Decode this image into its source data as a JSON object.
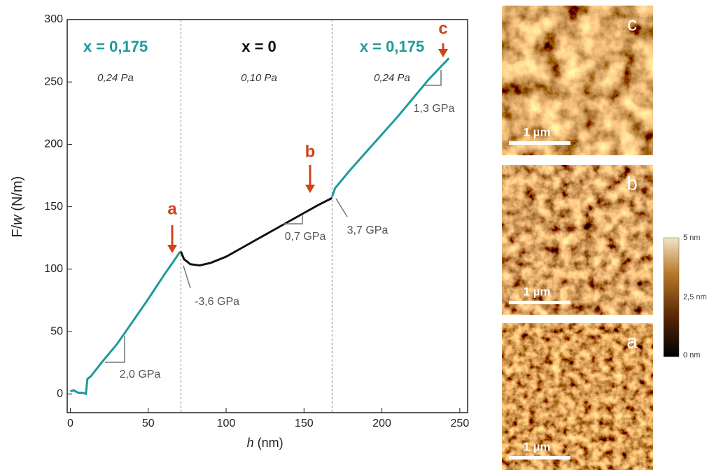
{
  "chart_data": {
    "type": "line",
    "xlabel": {
      "var": "h",
      "unit": "(nm)"
    },
    "ylabel": {
      "var": "F/",
      "var2": "w",
      "unit": "(N/m)"
    },
    "xlim": [
      -2,
      255
    ],
    "ylim": [
      -15,
      300
    ],
    "xticks": [
      0,
      50,
      100,
      150,
      200,
      250
    ],
    "yticks": [
      0,
      50,
      100,
      150,
      200,
      250,
      300
    ],
    "dividers": [
      71,
      168
    ],
    "series": [
      {
        "color": "#1f9a9a",
        "x": [
          0,
          2,
          5,
          8,
          10,
          11,
          13,
          15,
          20,
          30,
          40,
          50,
          60,
          70,
          71
        ],
        "values": [
          2,
          3,
          1,
          1,
          0,
          12,
          14,
          17,
          25,
          40,
          58,
          76,
          95,
          113,
          114
        ]
      },
      {
        "color": "#111111",
        "x": [
          71,
          73,
          77,
          83,
          90,
          100,
          110,
          120,
          130,
          140,
          150,
          160,
          168
        ],
        "values": [
          114,
          108,
          104,
          103,
          105,
          110,
          117,
          124,
          131,
          138,
          145,
          152,
          157
        ]
      },
      {
        "color": "#1f9a9a",
        "x": [
          168,
          170,
          180,
          190,
          200,
          210,
          220,
          230,
          243
        ],
        "values": [
          158,
          165,
          180,
          194,
          208,
          222,
          237,
          252,
          269
        ]
      }
    ],
    "regions": [
      {
        "label": "x = 0,175",
        "pressure": "0,24 Pa",
        "color": "#1f9a9a"
      },
      {
        "label": "x = 0",
        "pressure": "0,10 Pa",
        "color": "#111111"
      },
      {
        "label": "x = 0,175",
        "pressure": "0,24 Pa",
        "color": "#1f9a9a"
      }
    ],
    "slopes": [
      "2,0 GPa",
      "-3,6 GPa",
      "0,7 GPa",
      "3,7 GPa",
      "1,3 GPa"
    ],
    "markers": [
      "a",
      "b",
      "c"
    ]
  },
  "images": [
    {
      "label": "c",
      "scale_bar": "1 µm"
    },
    {
      "label": "b",
      "scale_bar": "1 µm"
    },
    {
      "label": "a",
      "scale_bar": "1 µm"
    }
  ],
  "colorbar": {
    "labels": [
      "5 nm",
      "2,5 nm",
      "0 nm"
    ]
  }
}
